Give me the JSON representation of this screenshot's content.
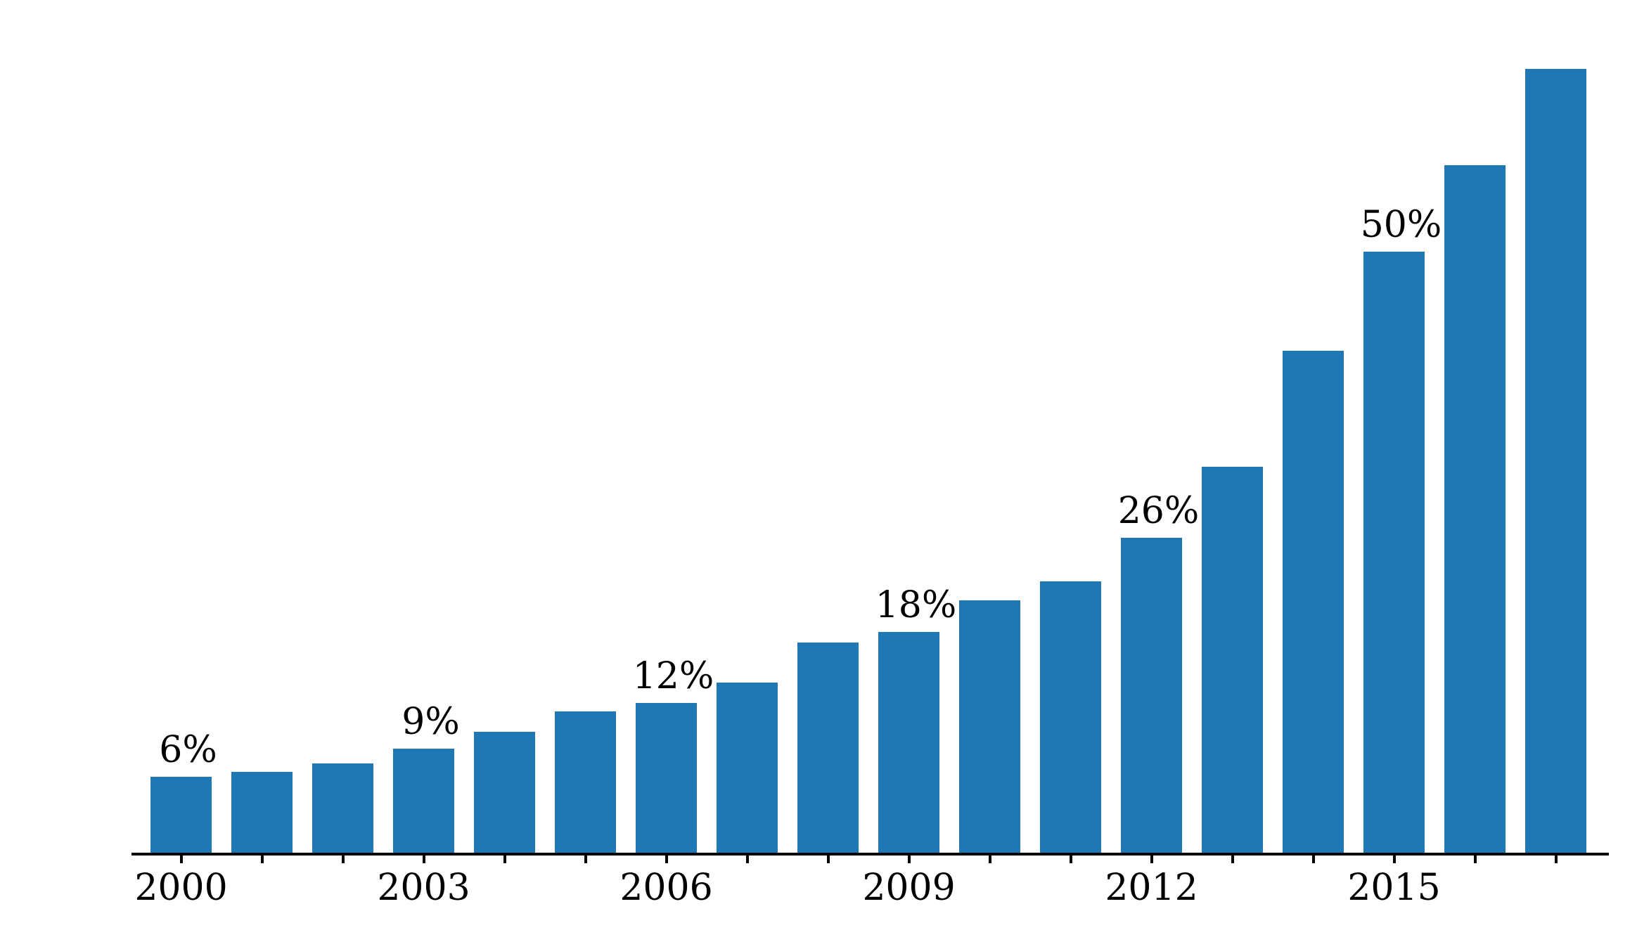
{
  "figure": {
    "background_color": "#ffffff"
  },
  "chart_data": {
    "type": "bar",
    "title": "",
    "xlabel": "",
    "ylabel": "",
    "grid": false,
    "legend": false,
    "bar_color": "#1f77b4",
    "axis_color": "#000000",
    "text_color": "#000000",
    "ylim": [
      0,
      70.7
    ],
    "x_tick_labeled_years": [
      "2000",
      "2003",
      "2006",
      "2009",
      "2012",
      "2015"
    ],
    "value_labels_shown": [
      "6%",
      "9%",
      "12%",
      "18%",
      "26%",
      "50%"
    ],
    "bars": [
      {
        "year": "2000",
        "value": 6.3,
        "value_label": "6%",
        "tick_label": "2000"
      },
      {
        "year": "2001",
        "value": 6.7
      },
      {
        "year": "2002",
        "value": 7.4
      },
      {
        "year": "2003",
        "value": 8.6,
        "value_label": "9%",
        "tick_label": "2003"
      },
      {
        "year": "2004",
        "value": 10.0
      },
      {
        "year": "2005",
        "value": 11.7
      },
      {
        "year": "2006",
        "value": 12.4,
        "value_label": "12%",
        "tick_label": "2006"
      },
      {
        "year": "2007",
        "value": 14.1
      },
      {
        "year": "2008",
        "value": 17.4
      },
      {
        "year": "2009",
        "value": 18.3,
        "value_label": "18%",
        "tick_label": "2009"
      },
      {
        "year": "2010",
        "value": 20.9
      },
      {
        "year": "2011",
        "value": 22.5
      },
      {
        "year": "2012",
        "value": 26.1,
        "value_label": "26%",
        "tick_label": "2012"
      },
      {
        "year": "2013",
        "value": 32.0
      },
      {
        "year": "2014",
        "value": 41.6
      },
      {
        "year": "2015",
        "value": 49.8,
        "value_label": "50%",
        "tick_label": "2015"
      },
      {
        "year": "2016",
        "value": 57.0
      },
      {
        "year": "2017",
        "value": 65.0
      }
    ]
  }
}
